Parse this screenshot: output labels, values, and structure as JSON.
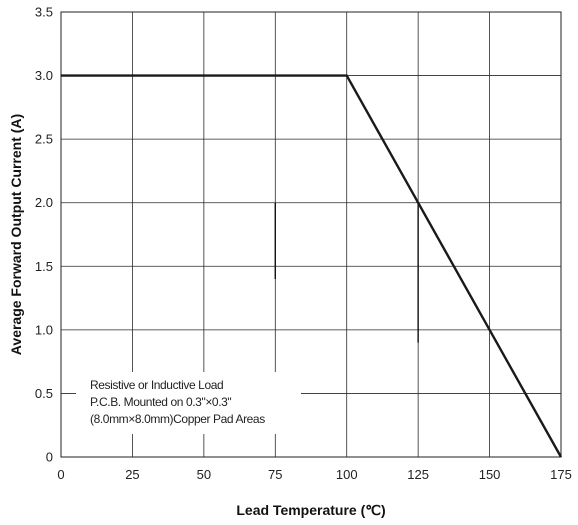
{
  "chart_data": {
    "type": "line",
    "xlabel": "Lead Temperature (℃)",
    "ylabel": "Average Forward Output Current (A)",
    "xlim": [
      0,
      175
    ],
    "ylim": [
      0,
      3.5
    ],
    "x_ticks": [
      "0",
      "25",
      "50",
      "75",
      "100",
      "125",
      "150",
      "175"
    ],
    "y_ticks": [
      "0",
      "0.5",
      "1.0",
      "1.5",
      "2.0",
      "2.5",
      "3.0",
      "3.5"
    ],
    "grid": true,
    "series": [
      {
        "x": [
          0,
          100,
          175
        ],
        "y": [
          3.0,
          3.0,
          0
        ],
        "color": "#1a1a1a"
      }
    ],
    "annotation": [
      "Resistive or Inductive Load",
      "P.C.B. Mounted on 0.3\"×0.3\"",
      "(8.0mm×8.0mm)Copper Pad Areas"
    ]
  }
}
